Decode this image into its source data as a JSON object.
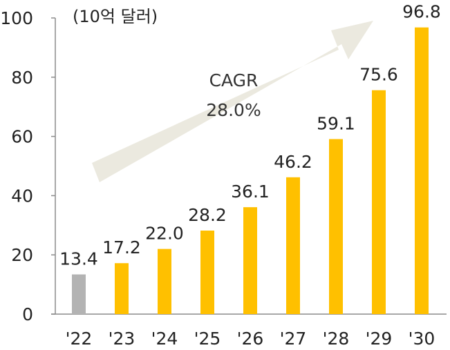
{
  "chart_data": {
    "type": "bar",
    "unit_label": "(10억 달러)",
    "categories": [
      "'22",
      "'23",
      "'24",
      "'25",
      "'26",
      "'27",
      "'28",
      "'29",
      "'30"
    ],
    "values": [
      13.4,
      17.2,
      22.0,
      28.2,
      36.1,
      46.2,
      59.1,
      75.6,
      96.8
    ],
    "value_labels": [
      "13.4",
      "17.2",
      "22.0",
      "28.2",
      "36.1",
      "46.2",
      "59.1",
      "75.6",
      "96.8"
    ],
    "bar_colors": [
      "#b3b3b3",
      "#ffc000",
      "#ffc000",
      "#ffc000",
      "#ffc000",
      "#ffc000",
      "#ffc000",
      "#ffc000",
      "#ffc000"
    ],
    "ylim": [
      0,
      100
    ],
    "yticks": [
      0,
      20,
      40,
      60,
      80,
      100
    ],
    "grid": false,
    "annotation": {
      "line1": "CAGR",
      "line2": "28.0%",
      "arrow_color": "#ebe9df"
    }
  }
}
